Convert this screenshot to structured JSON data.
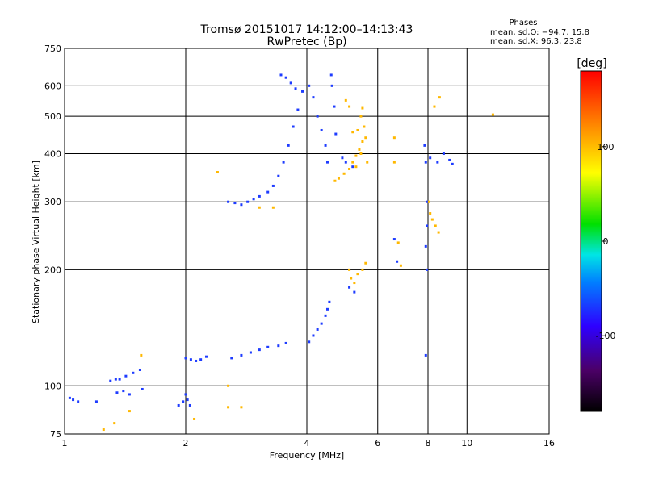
{
  "chart_data": {
    "type": "scatter",
    "title": "Tromsø 20151017 14:12:00–14:13:43",
    "subtitle": "RwPretec (Bp)",
    "xlabel": "Frequency [MHz]",
    "ylabel": "Stationary phase Virtual Height [km]",
    "x_scale": "log",
    "y_scale": "log",
    "xlim": [
      1,
      16
    ],
    "ylim": [
      75,
      750
    ],
    "x_ticks": [
      1,
      2,
      4,
      6,
      8,
      10,
      16
    ],
    "y_ticks": [
      75,
      100,
      200,
      300,
      400,
      500,
      600,
      750
    ],
    "grid": true,
    "stats": {
      "header": "Phases",
      "line_o": "mean, sd,O: −94.7, 15.8",
      "line_x": "mean, sd,X:  96.3, 23.8"
    },
    "colorbar": {
      "label": "[deg]",
      "range": [
        -180,
        180
      ],
      "ticks": [
        100,
        0,
        -100
      ]
    },
    "series": [
      {
        "color_group": "O-mode",
        "phase": -100,
        "points": [
          [
            1.03,
            93
          ],
          [
            1.05,
            92
          ],
          [
            1.08,
            91
          ],
          [
            1.2,
            91
          ],
          [
            1.35,
            96
          ],
          [
            1.4,
            97
          ],
          [
            1.45,
            95
          ],
          [
            1.56,
            98
          ],
          [
            1.3,
            103
          ],
          [
            1.34,
            104
          ],
          [
            1.37,
            104
          ],
          [
            1.42,
            106
          ],
          [
            1.48,
            108
          ],
          [
            1.54,
            110
          ],
          [
            1.92,
            89
          ],
          [
            1.97,
            91
          ],
          [
            2.02,
            92
          ],
          [
            2.05,
            89
          ],
          [
            2.0,
            95
          ],
          [
            2.0,
            118
          ],
          [
            2.06,
            117
          ],
          [
            2.12,
            116
          ],
          [
            2.18,
            117
          ],
          [
            2.25,
            119
          ],
          [
            2.6,
            118
          ],
          [
            2.75,
            120
          ],
          [
            2.9,
            122
          ],
          [
            3.05,
            124
          ],
          [
            3.2,
            126
          ],
          [
            3.4,
            127
          ],
          [
            3.55,
            129
          ],
          [
            4.05,
            130
          ],
          [
            4.15,
            135
          ],
          [
            4.25,
            140
          ],
          [
            4.35,
            145
          ],
          [
            4.45,
            152
          ],
          [
            4.5,
            158
          ],
          [
            4.55,
            165
          ],
          [
            5.1,
            180
          ],
          [
            5.25,
            175
          ],
          [
            7.9,
            120
          ],
          [
            2.55,
            300
          ],
          [
            2.65,
            298
          ],
          [
            2.75,
            295
          ],
          [
            2.85,
            300
          ],
          [
            2.95,
            305
          ],
          [
            3.05,
            310
          ],
          [
            3.2,
            318
          ],
          [
            3.3,
            330
          ],
          [
            3.4,
            350
          ],
          [
            3.5,
            380
          ],
          [
            3.6,
            420
          ],
          [
            3.7,
            470
          ],
          [
            3.8,
            520
          ],
          [
            3.9,
            580
          ],
          [
            3.45,
            640
          ],
          [
            3.55,
            630
          ],
          [
            3.65,
            610
          ],
          [
            3.75,
            590
          ],
          [
            4.05,
            600
          ],
          [
            4.15,
            560
          ],
          [
            4.25,
            500
          ],
          [
            4.35,
            460
          ],
          [
            4.45,
            420
          ],
          [
            4.5,
            380
          ],
          [
            4.6,
            640
          ],
          [
            4.62,
            600
          ],
          [
            4.68,
            530
          ],
          [
            4.72,
            450
          ],
          [
            4.9,
            390
          ],
          [
            5.0,
            380
          ],
          [
            5.2,
            370
          ],
          [
            7.85,
            420
          ],
          [
            7.9,
            380
          ],
          [
            8.1,
            390
          ],
          [
            8.45,
            380
          ],
          [
            8.75,
            400
          ],
          [
            9.05,
            385
          ],
          [
            9.2,
            376
          ],
          [
            7.95,
            300
          ],
          [
            7.95,
            260
          ],
          [
            7.9,
            230
          ],
          [
            7.95,
            200
          ],
          [
            6.6,
            240
          ],
          [
            6.7,
            210
          ]
        ]
      },
      {
        "color_group": "X-mode",
        "phase": 95,
        "points": [
          [
            1.45,
            86
          ],
          [
            1.33,
            80
          ],
          [
            1.25,
            77
          ],
          [
            1.55,
            120
          ],
          [
            2.1,
            82
          ],
          [
            2.55,
            88
          ],
          [
            2.75,
            88
          ],
          [
            2.55,
            100
          ],
          [
            3.05,
            290
          ],
          [
            3.3,
            290
          ],
          [
            2.4,
            358
          ],
          [
            4.7,
            340
          ],
          [
            4.8,
            345
          ],
          [
            4.95,
            355
          ],
          [
            5.1,
            365
          ],
          [
            5.2,
            380
          ],
          [
            5.3,
            395
          ],
          [
            5.4,
            410
          ],
          [
            5.5,
            430
          ],
          [
            5.6,
            440
          ],
          [
            5.2,
            455
          ],
          [
            5.35,
            460
          ],
          [
            5.55,
            470
          ],
          [
            5.45,
            500
          ],
          [
            5.5,
            525
          ],
          [
            5.0,
            550
          ],
          [
            5.1,
            530
          ],
          [
            5.45,
            400
          ],
          [
            5.65,
            380
          ],
          [
            5.3,
            370
          ],
          [
            5.1,
            200
          ],
          [
            5.15,
            190
          ],
          [
            5.25,
            185
          ],
          [
            5.35,
            195
          ],
          [
            5.5,
            200
          ],
          [
            5.6,
            208
          ],
          [
            6.6,
            380
          ],
          [
            6.6,
            440
          ],
          [
            6.75,
            235
          ],
          [
            6.85,
            205
          ],
          [
            8.05,
            300
          ],
          [
            8.1,
            280
          ],
          [
            8.2,
            270
          ],
          [
            8.35,
            260
          ],
          [
            8.5,
            250
          ],
          [
            8.3,
            530
          ],
          [
            8.55,
            560
          ],
          [
            11.6,
            505
          ]
        ]
      }
    ]
  }
}
